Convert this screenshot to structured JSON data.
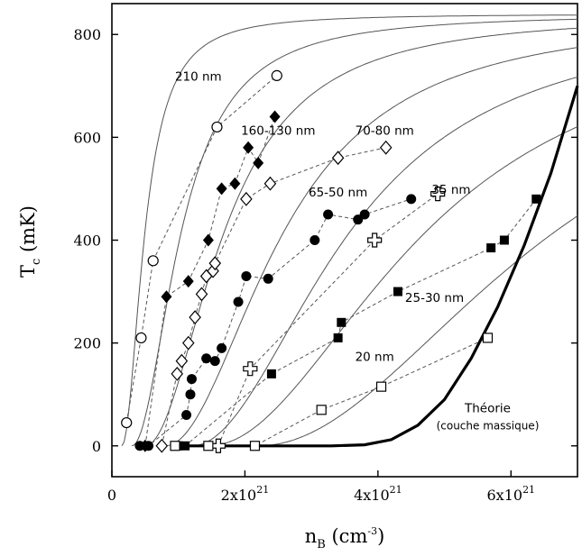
{
  "chart_data": {
    "type": "scatter",
    "title": "",
    "xlabel": {
      "main": "n",
      "sub": "B",
      "unit_prefix": " (cm",
      "unit_sup": "-3",
      "unit_suffix": ")"
    },
    "ylabel": {
      "main": "T",
      "sub": "c",
      "unit": " (mK)"
    },
    "xlim": [
      0,
      7e+21
    ],
    "ylim": [
      -60,
      860
    ],
    "x_ticks": [
      {
        "value": 0,
        "label": "0",
        "exp": ""
      },
      {
        "value": 2e+21,
        "label": "2x10",
        "exp": "21"
      },
      {
        "value": 4e+21,
        "label": "4x10",
        "exp": "21"
      },
      {
        "value": 6e+21,
        "label": "6x10",
        "exp": "21"
      }
    ],
    "y_ticks": [
      {
        "value": 0,
        "label": "0"
      },
      {
        "value": 200,
        "label": "200"
      },
      {
        "value": 400,
        "label": "400"
      },
      {
        "value": 600,
        "label": "600"
      },
      {
        "value": 800,
        "label": "800"
      }
    ],
    "grid": false,
    "series": [
      {
        "name": "210 nm",
        "marker": "open-circle",
        "label_pos": [
          1.3e+21,
          710
        ],
        "fit": {
          "tmax": 840,
          "n0": 1.5e+20,
          "w": 3.5e+20
        },
        "points": [
          [
            2.2e+20,
            45
          ],
          [
            4.4e+20,
            210
          ],
          [
            6.2e+20,
            360
          ],
          [
            1.58e+21,
            620
          ],
          [
            2.48e+21,
            720
          ]
        ]
      },
      {
        "name": "160-130 nm",
        "marker": "filled-diamond",
        "label_pos": [
          2.5e+21,
          605
        ],
        "fit": {
          "tmax": 840,
          "n0": 3e+20,
          "w": 7.5e+20
        },
        "points": [
          [
            5e+20,
            0
          ],
          [
            8.2e+20,
            290
          ],
          [
            1.15e+21,
            320
          ],
          [
            1.45e+21,
            400
          ],
          [
            1.65e+21,
            500
          ],
          [
            1.85e+21,
            510
          ],
          [
            2.05e+21,
            580
          ],
          [
            2.2e+21,
            550
          ],
          [
            2.45e+21,
            640
          ]
        ]
      },
      {
        "name": "70-80 nm",
        "marker": "open-diamond",
        "label_pos": [
          4.1e+21,
          605
        ],
        "fit": {
          "tmax": 840,
          "n0": 5e+20,
          "w": 1.2e+21
        },
        "points": [
          [
            7.5e+20,
            0
          ],
          [
            9.8e+20,
            140
          ],
          [
            1.05e+21,
            165
          ],
          [
            1.15e+21,
            200
          ],
          [
            1.25e+21,
            250
          ],
          [
            1.35e+21,
            295
          ],
          [
            1.42e+21,
            330
          ],
          [
            1.52e+21,
            340
          ],
          [
            1.55e+21,
            355
          ],
          [
            2.02e+21,
            480
          ],
          [
            2.38e+21,
            510
          ],
          [
            3.4e+21,
            560
          ],
          [
            4.12e+21,
            580
          ]
        ]
      },
      {
        "name": "65-50 nm",
        "marker": "filled-circle",
        "label_pos": [
          3.4e+21,
          485
        ],
        "fit": {
          "tmax": 840,
          "n0": 8e+20,
          "w": 1.8e+21
        },
        "points": [
          [
            4.2e+20,
            0
          ],
          [
            5.5e+20,
            0
          ],
          [
            1.12e+21,
            60
          ],
          [
            1.18e+21,
            100
          ],
          [
            1.2e+21,
            130
          ],
          [
            1.42e+21,
            170
          ],
          [
            1.55e+21,
            165
          ],
          [
            1.65e+21,
            190
          ],
          [
            1.9e+21,
            280
          ],
          [
            2.02e+21,
            330
          ],
          [
            2.35e+21,
            325
          ],
          [
            3.05e+21,
            400
          ],
          [
            3.25e+21,
            450
          ],
          [
            3.7e+21,
            440
          ],
          [
            3.8e+21,
            450
          ],
          [
            4.5e+21,
            480
          ]
        ]
      },
      {
        "name": "35 nm",
        "marker": "open-cross",
        "label_pos": [
          5.1e+21,
          490
        ],
        "fit": {
          "tmax": 840,
          "n0": 1.2e+21,
          "w": 2.4e+21
        },
        "points": [
          [
            1.6e+21,
            0
          ],
          [
            2.08e+21,
            150
          ],
          [
            3.95e+21,
            400
          ],
          [
            4.9e+21,
            490
          ]
        ]
      },
      {
        "name": "25-30 nm",
        "marker": "filled-square",
        "label_pos": [
          4.85e+21,
          280
        ],
        "fit": {
          "tmax": 840,
          "n0": 1.45e+21,
          "w": 3.3e+21
        },
        "points": [
          [
            1e+21,
            0
          ],
          [
            1.1e+21,
            0
          ],
          [
            2.4e+21,
            140
          ],
          [
            3.4e+21,
            210
          ],
          [
            3.45e+21,
            240
          ],
          [
            4.3e+21,
            300
          ],
          [
            5.7e+21,
            385
          ],
          [
            5.9e+21,
            400
          ],
          [
            6.38e+21,
            480
          ]
        ]
      },
      {
        "name": "20 nm",
        "marker": "open-square",
        "label_pos": [
          3.95e+21,
          165
        ],
        "fit": {
          "tmax": 840,
          "n0": 2.2e+21,
          "w": 4.5e+21
        },
        "points": [
          [
            9.5e+20,
            0
          ],
          [
            1.45e+21,
            0
          ],
          [
            2.15e+21,
            0
          ],
          [
            3.15e+21,
            70
          ],
          [
            4.05e+21,
            115
          ],
          [
            5.65e+21,
            210
          ]
        ]
      }
    ],
    "theory_curve": {
      "name": "Théorie",
      "subname": "(couche massique)",
      "label_pos": [
        5.65e+21,
        65
      ],
      "x_start": 3.3e+21,
      "points": [
        [
          1e+21,
          0
        ],
        [
          3.3e+21,
          0
        ],
        [
          3.8e+21,
          2
        ],
        [
          4.2e+21,
          12
        ],
        [
          4.6e+21,
          40
        ],
        [
          5e+21,
          90
        ],
        [
          5.4e+21,
          170
        ],
        [
          5.8e+21,
          270
        ],
        [
          6.2e+21,
          390
        ],
        [
          6.6e+21,
          530
        ],
        [
          7e+21,
          700
        ]
      ]
    }
  }
}
